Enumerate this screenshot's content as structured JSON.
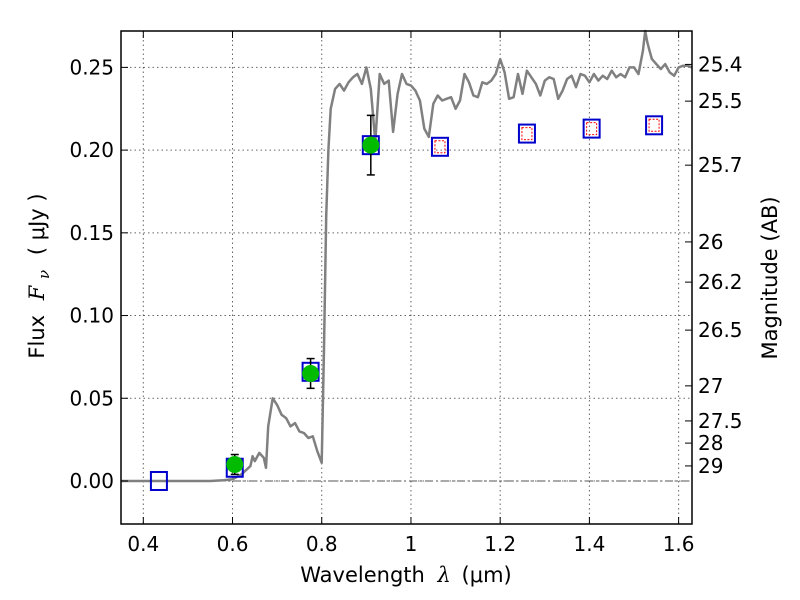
{
  "chart_data": {
    "type": "scatter",
    "xlabel_prefix": "Wavelength",
    "xlabel_symbol": "λ",
    "xlabel_unit": "(μm)",
    "ylabel_prefix": "Flux",
    "ylabel_symbol": "F",
    "ylabel_subscript": "ν",
    "ylabel_unit": "( μJy )",
    "y2label": "Magnitude (AB)",
    "xlim": [
      0.35,
      1.63
    ],
    "ylim": [
      -0.026,
      0.272
    ],
    "grid": true,
    "x_ticks": [
      {
        "value": 0.4,
        "label": "0.4"
      },
      {
        "value": 0.6,
        "label": "0.6"
      },
      {
        "value": 0.8,
        "label": "0.8"
      },
      {
        "value": 1.0,
        "label": "1"
      },
      {
        "value": 1.2,
        "label": "1.2"
      },
      {
        "value": 1.4,
        "label": "1.4"
      },
      {
        "value": 1.6,
        "label": "1.6"
      }
    ],
    "y_ticks": [
      {
        "value": 0.0,
        "label": "0.00"
      },
      {
        "value": 0.05,
        "label": "0.05"
      },
      {
        "value": 0.1,
        "label": "0.10"
      },
      {
        "value": 0.15,
        "label": "0.15"
      },
      {
        "value": 0.2,
        "label": "0.20"
      },
      {
        "value": 0.25,
        "label": "0.25"
      }
    ],
    "y2_ticks": [
      {
        "flux": 0.2518,
        "label": "25.4"
      },
      {
        "flux": 0.2296,
        "label": "25.5"
      },
      {
        "flux": 0.1909,
        "label": "25.7"
      },
      {
        "flux": 0.1445,
        "label": "26"
      },
      {
        "flux": 0.1202,
        "label": "26.2"
      },
      {
        "flux": 0.0912,
        "label": "26.5"
      },
      {
        "flux": 0.0575,
        "label": "27"
      },
      {
        "flux": 0.0363,
        "label": "27.5"
      },
      {
        "flux": 0.0229,
        "label": "28"
      },
      {
        "flux": 0.0091,
        "label": "29"
      }
    ],
    "colors": {
      "model": "#808080",
      "observed": "#00bb00",
      "errorbar": "#000000",
      "model_box": "#0000cc",
      "upper_box": "#ff0000"
    },
    "model_spectrum": {
      "x": [
        0.35,
        0.45,
        0.55,
        0.58,
        0.6,
        0.62,
        0.64,
        0.645,
        0.65,
        0.66,
        0.67,
        0.675,
        0.68,
        0.69,
        0.7,
        0.71,
        0.72,
        0.73,
        0.74,
        0.75,
        0.76,
        0.77,
        0.78,
        0.79,
        0.8,
        0.805,
        0.81,
        0.815,
        0.82,
        0.83,
        0.84,
        0.85,
        0.86,
        0.87,
        0.88,
        0.89,
        0.9,
        0.91,
        0.92,
        0.93,
        0.94,
        0.95,
        0.96,
        0.97,
        0.98,
        0.99,
        1.0,
        1.01,
        1.02,
        1.03,
        1.04,
        1.05,
        1.06,
        1.07,
        1.08,
        1.09,
        1.1,
        1.11,
        1.12,
        1.13,
        1.14,
        1.15,
        1.16,
        1.17,
        1.18,
        1.19,
        1.2,
        1.21,
        1.22,
        1.23,
        1.24,
        1.25,
        1.26,
        1.27,
        1.28,
        1.29,
        1.3,
        1.31,
        1.32,
        1.33,
        1.34,
        1.35,
        1.36,
        1.37,
        1.38,
        1.39,
        1.4,
        1.41,
        1.42,
        1.43,
        1.44,
        1.45,
        1.46,
        1.47,
        1.48,
        1.49,
        1.5,
        1.51,
        1.52,
        1.525,
        1.53,
        1.535,
        1.54,
        1.55,
        1.56,
        1.57,
        1.58,
        1.59,
        1.6,
        1.61,
        1.62,
        1.63
      ],
      "y": [
        0.0,
        0.0,
        0.0,
        0.0005,
        0.001,
        0.004,
        0.009,
        0.015,
        0.012,
        0.017,
        0.014,
        0.008,
        0.033,
        0.05,
        0.046,
        0.04,
        0.038,
        0.033,
        0.035,
        0.03,
        0.029,
        0.026,
        0.027,
        0.018,
        0.011,
        0.08,
        0.16,
        0.2,
        0.225,
        0.237,
        0.24,
        0.236,
        0.241,
        0.244,
        0.246,
        0.24,
        0.25,
        0.237,
        0.205,
        0.246,
        0.24,
        0.242,
        0.211,
        0.234,
        0.246,
        0.24,
        0.239,
        0.236,
        0.23,
        0.213,
        0.208,
        0.228,
        0.233,
        0.23,
        0.231,
        0.232,
        0.225,
        0.23,
        0.246,
        0.241,
        0.233,
        0.232,
        0.241,
        0.24,
        0.242,
        0.246,
        0.255,
        0.247,
        0.231,
        0.232,
        0.246,
        0.234,
        0.248,
        0.244,
        0.24,
        0.233,
        0.242,
        0.244,
        0.243,
        0.231,
        0.236,
        0.243,
        0.245,
        0.238,
        0.246,
        0.245,
        0.241,
        0.246,
        0.242,
        0.245,
        0.243,
        0.248,
        0.244,
        0.246,
        0.244,
        0.25,
        0.25,
        0.246,
        0.26,
        0.272,
        0.265,
        0.26,
        0.255,
        0.252,
        0.249,
        0.252,
        0.247,
        0.245,
        0.25,
        0.251,
        0.251,
        0.25
      ]
    },
    "observed": [
      {
        "x": 0.605,
        "y": 0.01,
        "err": 0.006
      },
      {
        "x": 0.775,
        "y": 0.065,
        "err": 0.009
      },
      {
        "x": 0.91,
        "y": 0.203,
        "err": 0.018
      }
    ],
    "model_boxes": [
      0.435,
      0.605,
      0.775,
      0.91,
      1.065,
      1.26,
      1.405,
      1.545
    ],
    "model_box_flux": [
      0.0,
      0.008,
      0.066,
      0.203,
      0.202,
      0.21,
      0.213,
      0.215
    ],
    "upper_points": [
      {
        "x": 1.065,
        "y": 0.202
      },
      {
        "x": 1.26,
        "y": 0.21
      },
      {
        "x": 1.405,
        "y": 0.213
      },
      {
        "x": 1.545,
        "y": 0.215
      }
    ]
  }
}
